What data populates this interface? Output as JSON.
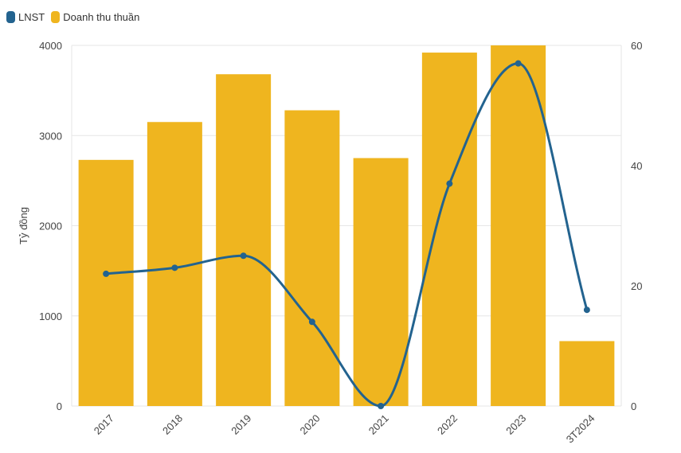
{
  "legend": {
    "line_label": "LNST",
    "bar_label": "Doanh thu thuần"
  },
  "colors": {
    "bar": "#EFB51F",
    "line": "#23638F",
    "grid": "#E6E6E6",
    "text": "#444444"
  },
  "chart_data": {
    "type": "bar",
    "categories": [
      "2017",
      "2018",
      "2019",
      "2020",
      "2021",
      "2022",
      "2023",
      "3T2024"
    ],
    "series": [
      {
        "name": "Doanh thu thuần",
        "type": "bar",
        "axis": "left",
        "values": [
          2730,
          3150,
          3680,
          3280,
          2750,
          3920,
          4000,
          720
        ]
      },
      {
        "name": "LNST",
        "type": "line",
        "axis": "right",
        "smooth": true,
        "values": [
          22,
          23,
          25,
          14,
          0,
          37,
          57,
          16
        ]
      }
    ],
    "ylabel": "Tỷ đồng",
    "ylim": [
      0,
      4000
    ],
    "yticks": [
      0,
      1000,
      2000,
      3000,
      4000
    ],
    "y2lim": [
      0,
      60
    ],
    "y2ticks": [
      0,
      20,
      40,
      60
    ],
    "grid": true,
    "legend_position": "top-left"
  }
}
